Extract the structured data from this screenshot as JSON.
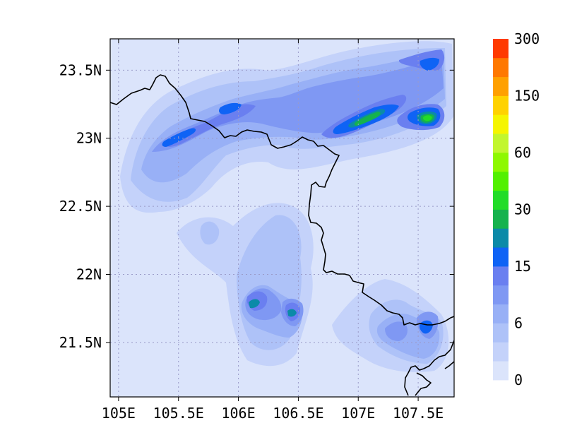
{
  "map": {
    "x_ticks": [
      "105E",
      "105.5E",
      "106E",
      "106.5E",
      "107E",
      "107.5E"
    ],
    "y_ticks": [
      "23.5N",
      "23N",
      "22.5N",
      "22N",
      "21.5N"
    ],
    "lon_values": [
      105,
      105.5,
      106,
      106.5,
      107,
      107.5
    ],
    "lat_values": [
      23.5,
      23,
      22.5,
      22,
      21.5
    ],
    "lon_range": [
      104.93,
      107.8
    ],
    "lat_range": [
      21.1,
      23.73
    ],
    "grid": "dotted",
    "background_color": "#dbe4fb",
    "border_color": "#000000"
  },
  "colorbar": {
    "labels": [
      "0",
      "6",
      "15",
      "30",
      "60",
      "150",
      "300"
    ],
    "colors": [
      "#dbe4fb",
      "#c4d2fa",
      "#aec2f8",
      "#98b0f6",
      "#7f98f3",
      "#6a7ff0",
      "#0f63f5",
      "#0b8aa8",
      "#16b24e",
      "#22dc28",
      "#52f000",
      "#8ef800",
      "#c2f62e",
      "#f5f500",
      "#ffd200",
      "#ffa000",
      "#ff7800",
      "#ff3a00"
    ]
  }
}
